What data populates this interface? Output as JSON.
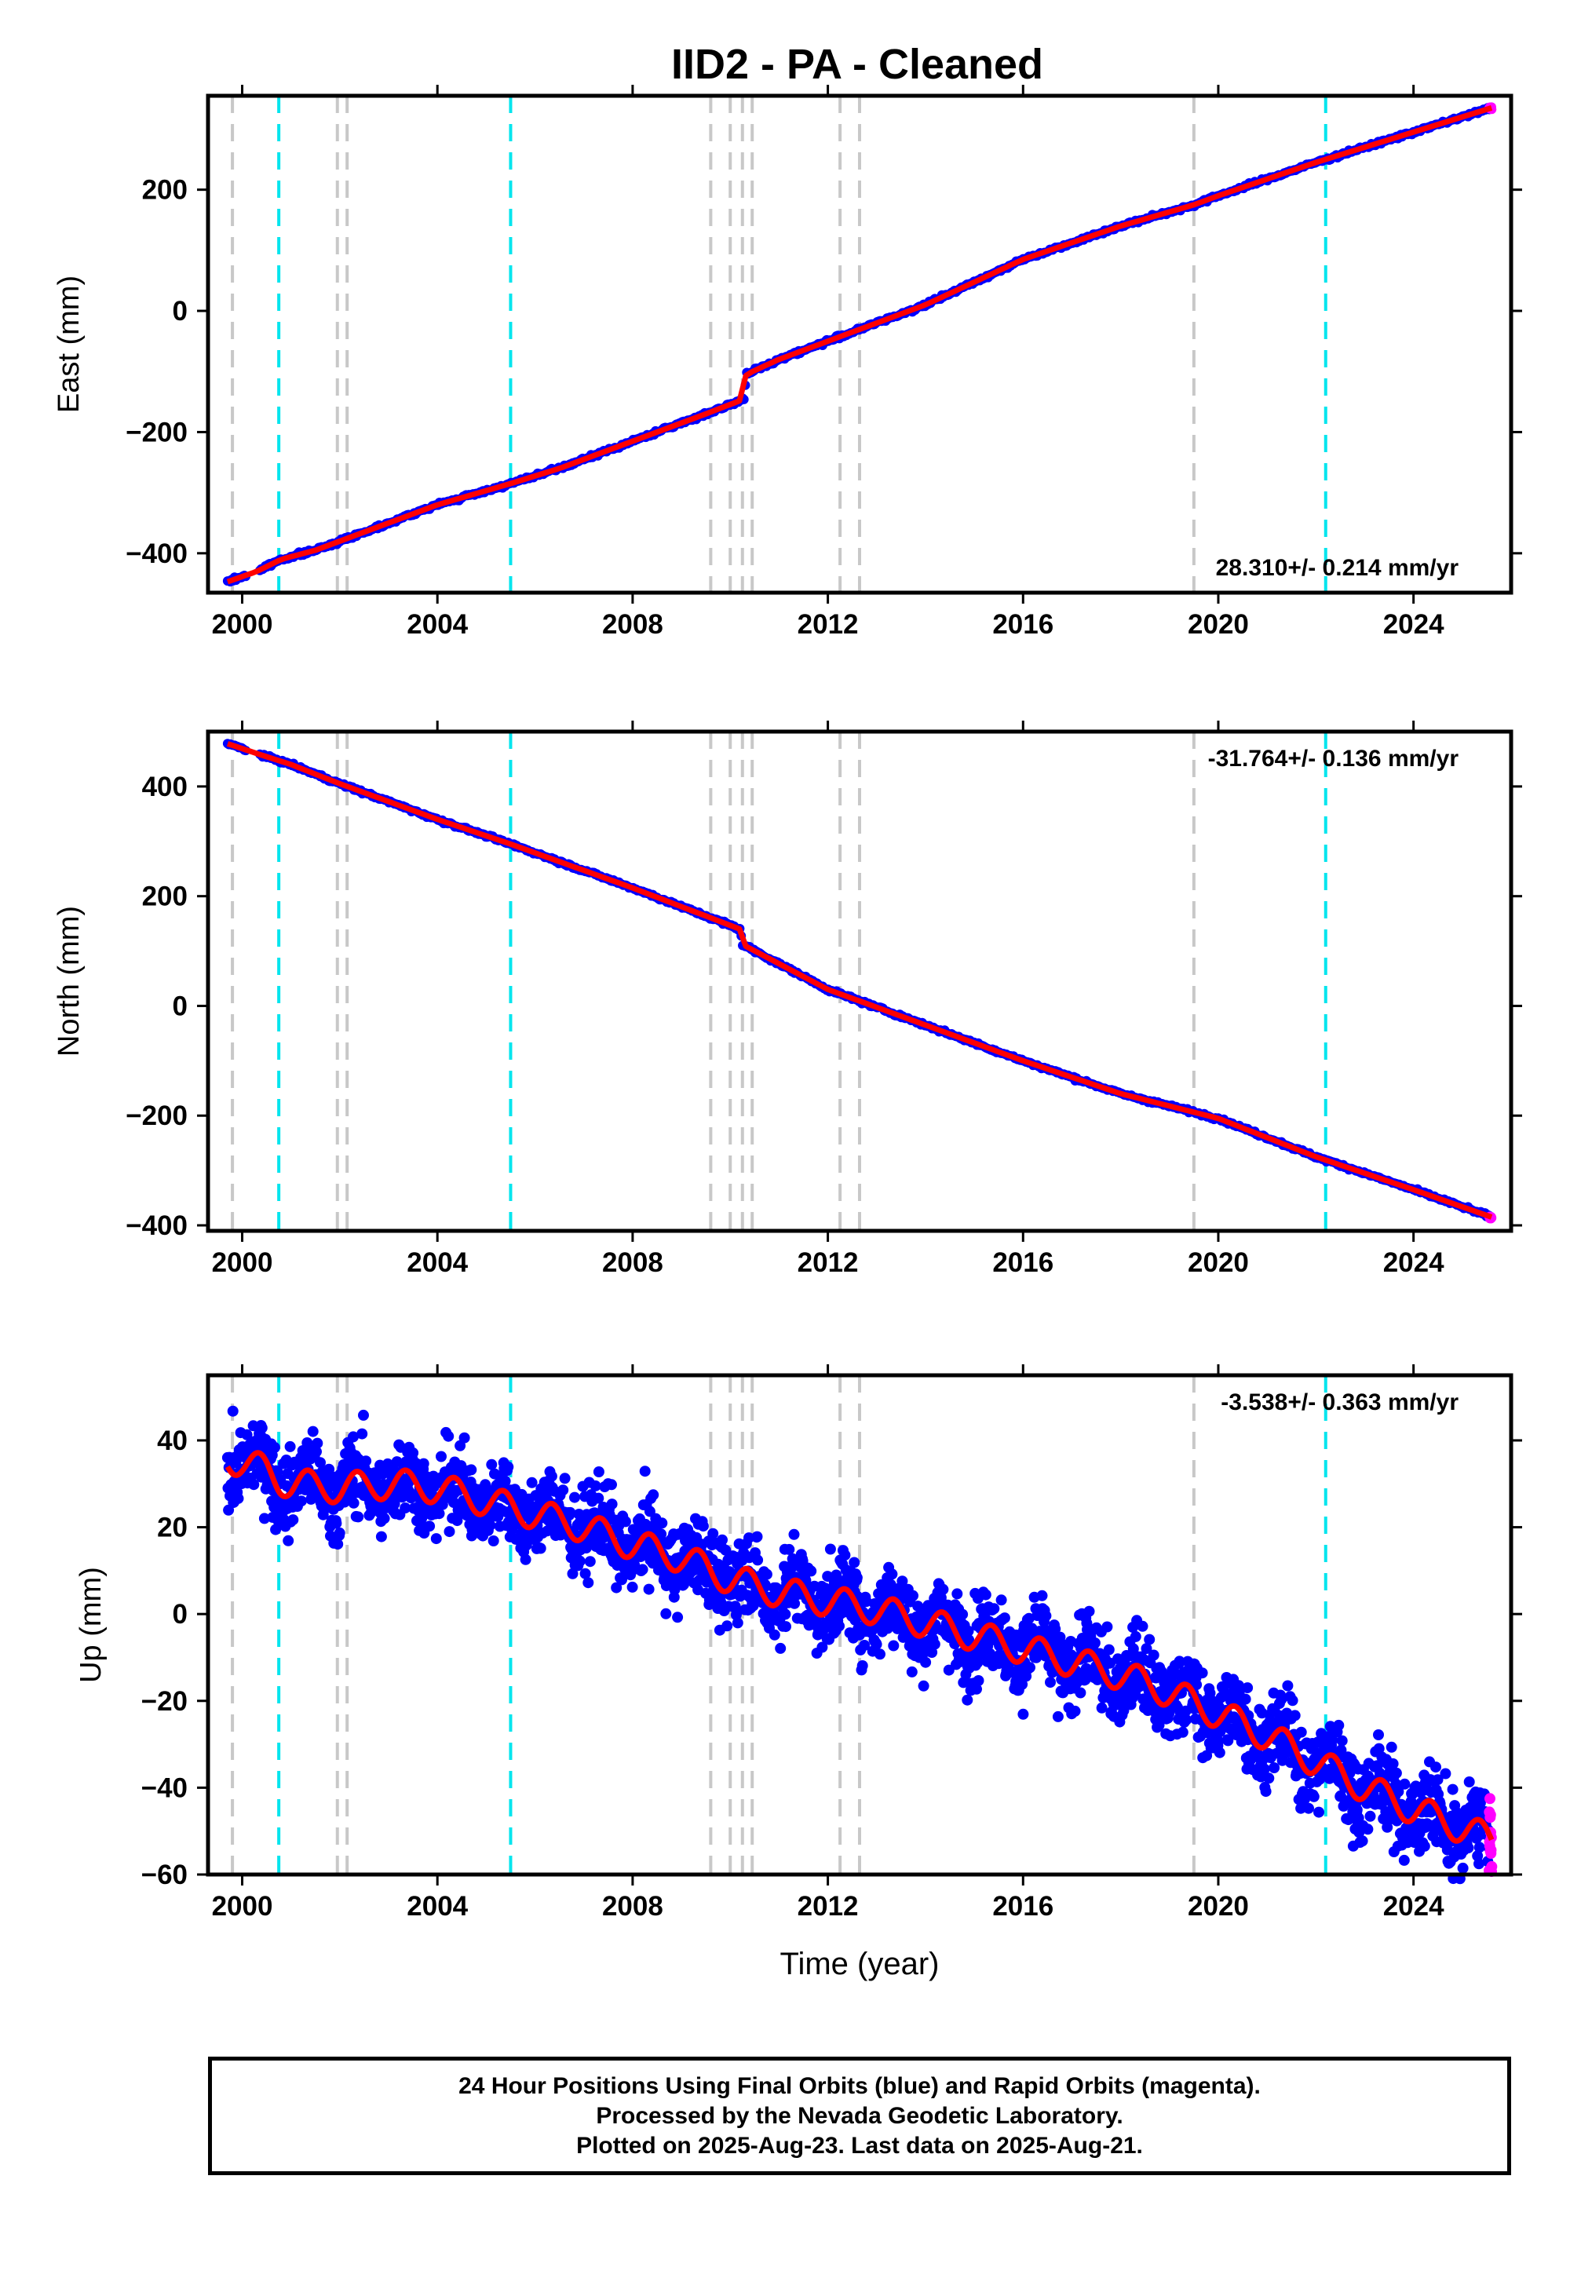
{
  "title": "IID2  - PA - Cleaned",
  "xlabel": "Time (year)",
  "footer": {
    "line1": "24 Hour Positions Using Final Orbits (blue) and Rapid Orbits (magenta).",
    "line2": "Processed by the Nevada Geodetic Laboratory.",
    "line3": "Plotted on 2025-Aug-23. Last data on 2025-Aug-21."
  },
  "colors": {
    "final_orbits": "#0000ff",
    "rapid_orbits": "#ff00ff",
    "model_fit": "#ff0000",
    "event_gray": "#c8c8c8",
    "event_cyan": "#00e5ee"
  },
  "chart_data": [
    {
      "type": "scatter",
      "panel": "east",
      "ylabel": "East (mm)",
      "rate_label": "28.310+/- 0.214 mm/yr",
      "xlim": [
        1999.3,
        2026.0
      ],
      "ylim": [
        -465,
        355
      ],
      "x_ticks": [
        "2000",
        "2004",
        "2008",
        "2012",
        "2016",
        "2020",
        "2024"
      ],
      "y_ticks": [
        "200",
        "0",
        "−200",
        "−400"
      ],
      "gray_event_lines": [
        1999.8,
        2001.95,
        2002.15,
        2009.6,
        2010.0,
        2010.25,
        2010.45,
        2012.25,
        2012.65,
        2019.5
      ],
      "cyan_event_lines": [
        2000.75,
        2005.5,
        2022.2
      ],
      "series": [
        {
          "type": "line",
          "x": [
            1999.7,
            2000.3,
            2000.8,
            2001.5,
            2002.0,
            2003.0,
            2004.0,
            2005.5,
            2006.5,
            2007.5,
            2008.5,
            2009.5,
            2010.3,
            2010.32,
            2011.0,
            2012.0,
            2013.0,
            2014.0,
            2016.0,
            2018.0,
            2019.5,
            2020.0,
            2022.0,
            2024.0,
            2025.6
          ],
          "y": [
            -447,
            -430,
            -410,
            -395,
            -380,
            -350,
            -320,
            -285,
            -260,
            -230,
            -200,
            -170,
            -145,
            -105,
            -80,
            -50,
            -20,
            10,
            85,
            140,
            175,
            190,
            245,
            295,
            335
          ]
        }
      ]
    },
    {
      "type": "scatter",
      "panel": "north",
      "ylabel": "North (mm)",
      "rate_label": "-31.764+/- 0.136 mm/yr",
      "xlim": [
        1999.3,
        2026.0
      ],
      "ylim": [
        -410,
        500
      ],
      "x_ticks": [
        "2000",
        "2004",
        "2008",
        "2012",
        "2016",
        "2020",
        "2024"
      ],
      "y_ticks": [
        "400",
        "200",
        "0",
        "−200",
        "−400"
      ],
      "gray_event_lines": [
        1999.8,
        2001.95,
        2002.15,
        2009.6,
        2010.0,
        2010.25,
        2010.45,
        2012.25,
        2012.65,
        2019.5
      ],
      "cyan_event_lines": [
        2000.75,
        2005.5,
        2022.2
      ],
      "series": [
        {
          "type": "line",
          "x": [
            1999.7,
            2000.3,
            2001.0,
            2002.0,
            2004.0,
            2005.5,
            2008.0,
            2010.2,
            2010.25,
            2012.0,
            2014.0,
            2016.0,
            2018.0,
            2020.0,
            2022.0,
            2024.0,
            2025.6
          ],
          "y": [
            478,
            460,
            440,
            405,
            340,
            295,
            215,
            140,
            112,
            30,
            -35,
            -100,
            -160,
            -205,
            -275,
            -335,
            -385
          ]
        }
      ]
    },
    {
      "type": "scatter",
      "panel": "up",
      "ylabel": "Up (mm)",
      "rate_label": "-3.538+/- 0.363 mm/yr",
      "xlim": [
        1999.3,
        2026.0
      ],
      "ylim": [
        -60,
        55
      ],
      "x_ticks": [
        "2000",
        "2004",
        "2008",
        "2012",
        "2016",
        "2020",
        "2024"
      ],
      "y_ticks": [
        "40",
        "20",
        "0",
        "−20",
        "−40",
        "−60"
      ],
      "gray_event_lines": [
        1999.8,
        2001.95,
        2002.15,
        2009.6,
        2010.0,
        2010.25,
        2010.45,
        2012.25,
        2012.65,
        2019.5
      ],
      "cyan_event_lines": [
        2000.75,
        2005.5,
        2022.2
      ],
      "series": [
        {
          "type": "line",
          "x": [
            1999.7,
            2000.0,
            2000.5,
            2000.75,
            2001.0,
            2002.0,
            2003.0,
            2004.0,
            2005.0,
            2006.0,
            2007.0,
            2008.0,
            2009.0,
            2010.0,
            2011.0,
            2012.0,
            2013.0,
            2014.0,
            2015.0,
            2016.0,
            2017.0,
            2018.0,
            2019.0,
            2020.0,
            2021.0,
            2022.0,
            2023.0,
            2024.0,
            2025.6
          ],
          "y": [
            36,
            35,
            33,
            31,
            30,
            29,
            30,
            29,
            26,
            23,
            20,
            16,
            13,
            8,
            5,
            3,
            1,
            -2,
            -5,
            -8,
            -11,
            -14,
            -18,
            -23,
            -28,
            -34,
            -40,
            -45,
            -52
          ]
        }
      ]
    }
  ]
}
